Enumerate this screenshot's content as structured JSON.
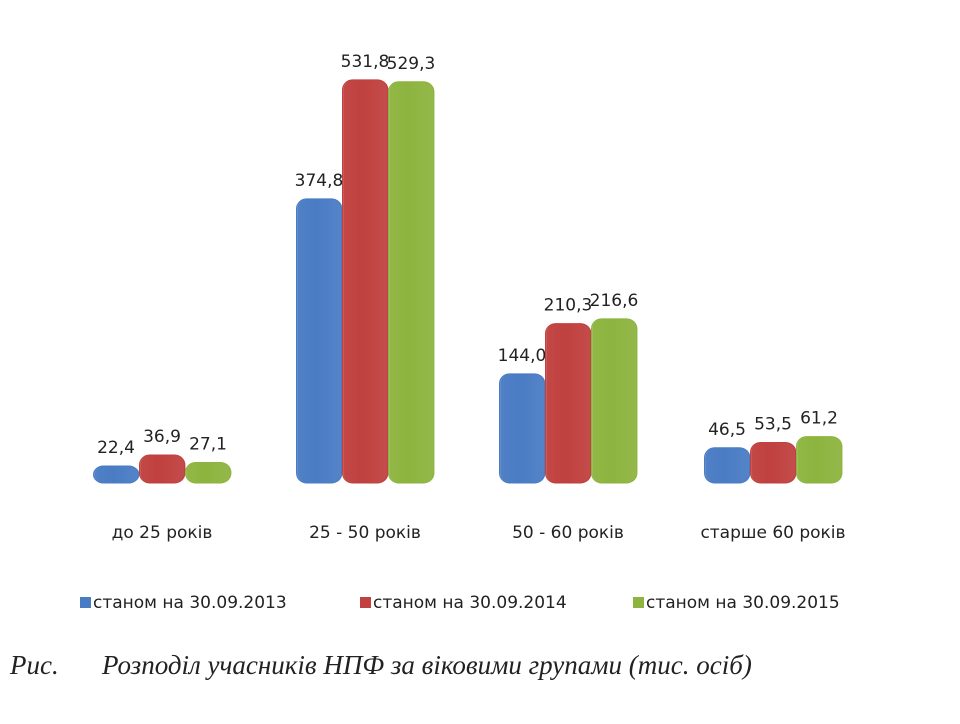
{
  "chart_data": {
    "type": "bar",
    "figure_label": "Рис.",
    "title": "Розподіл учасників НПФ за віковими групами (тис. осіб)",
    "categories": [
      "до 25 років",
      "25 - 50 років",
      "50 - 60 років",
      "старше 60 років"
    ],
    "series": [
      {
        "name": "станом на 30.09.2013",
        "color": "#4a7cc4",
        "values": [
          22.4,
          374.8,
          144.0,
          46.5
        ],
        "value_labels": [
          "22,4",
          "374,8",
          "144,0",
          "46,5"
        ]
      },
      {
        "name": "станом на 30.09.2014",
        "color": "#c0413f",
        "values": [
          36.9,
          531.8,
          210.3,
          53.5
        ],
        "value_labels": [
          "36,9",
          "531,8",
          "210,3",
          "53,5"
        ]
      },
      {
        "name": "станом на 30.09.2015",
        "color": "#8db43f",
        "values": [
          27.1,
          529.3,
          216.6,
          61.2
        ],
        "value_labels": [
          "27,1",
          "529,3",
          "216,6",
          "61,2"
        ]
      }
    ]
  }
}
